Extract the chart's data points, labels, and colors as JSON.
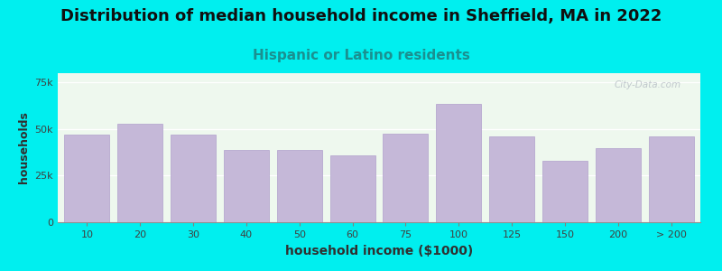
{
  "title": "Distribution of median household income in Sheffield, MA in 2022",
  "subtitle": "Hispanic or Latino residents",
  "xlabel": "household income ($1000)",
  "ylabel": "households",
  "background_color": "#00EFEF",
  "bar_color": "#c5b8d8",
  "bar_edge_color": "#b0a0cc",
  "categories": [
    "10",
    "20",
    "30",
    "40",
    "50",
    "60",
    "75",
    "100",
    "125",
    "150",
    "200",
    "> 200"
  ],
  "values": [
    47000,
    53000,
    47000,
    39000,
    39000,
    36000,
    47500,
    63500,
    46000,
    33000,
    40000,
    46000
  ],
  "ylim": [
    0,
    80000
  ],
  "yticks": [
    0,
    25000,
    50000,
    75000
  ],
  "title_fontsize": 13,
  "subtitle_fontsize": 11,
  "subtitle_color": "#1a9090",
  "watermark": "City-Data.com"
}
